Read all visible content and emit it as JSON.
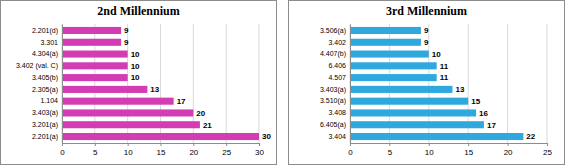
{
  "chart_data": [
    {
      "type": "bar",
      "orientation": "horizontal",
      "title": "2nd Millennium",
      "categories": [
        "2.201(d)",
        "3.301",
        "4.304(a)",
        "3.402 (val. C)",
        "3.405(b)",
        "2.305(a)",
        "1.104",
        "3.403(a)",
        "3.201(a)",
        "2.201(a)"
      ],
      "values": [
        9,
        9,
        10,
        10,
        10,
        13,
        17,
        20,
        21,
        30
      ],
      "color": "#d43cb3",
      "xlim": [
        0,
        30
      ],
      "xticks": [
        0,
        5,
        10,
        15,
        20,
        25,
        30
      ],
      "grid": true,
      "data_labels": true
    },
    {
      "type": "bar",
      "orientation": "horizontal",
      "title": "3rd Millennium",
      "categories": [
        "3.506(a)",
        "3.402",
        "4.407(b)",
        "6.406",
        "4.507",
        "3.403(a)",
        "3.510(a)",
        "3.408",
        "6.405(a)",
        "3.404"
      ],
      "values": [
        9,
        9,
        10,
        11,
        11,
        13,
        15,
        16,
        17,
        22
      ],
      "color": "#2fa8de",
      "xlim": [
        0,
        25
      ],
      "xticks": [
        0,
        5,
        10,
        15,
        20,
        25
      ],
      "grid": true,
      "data_labels": true
    }
  ]
}
